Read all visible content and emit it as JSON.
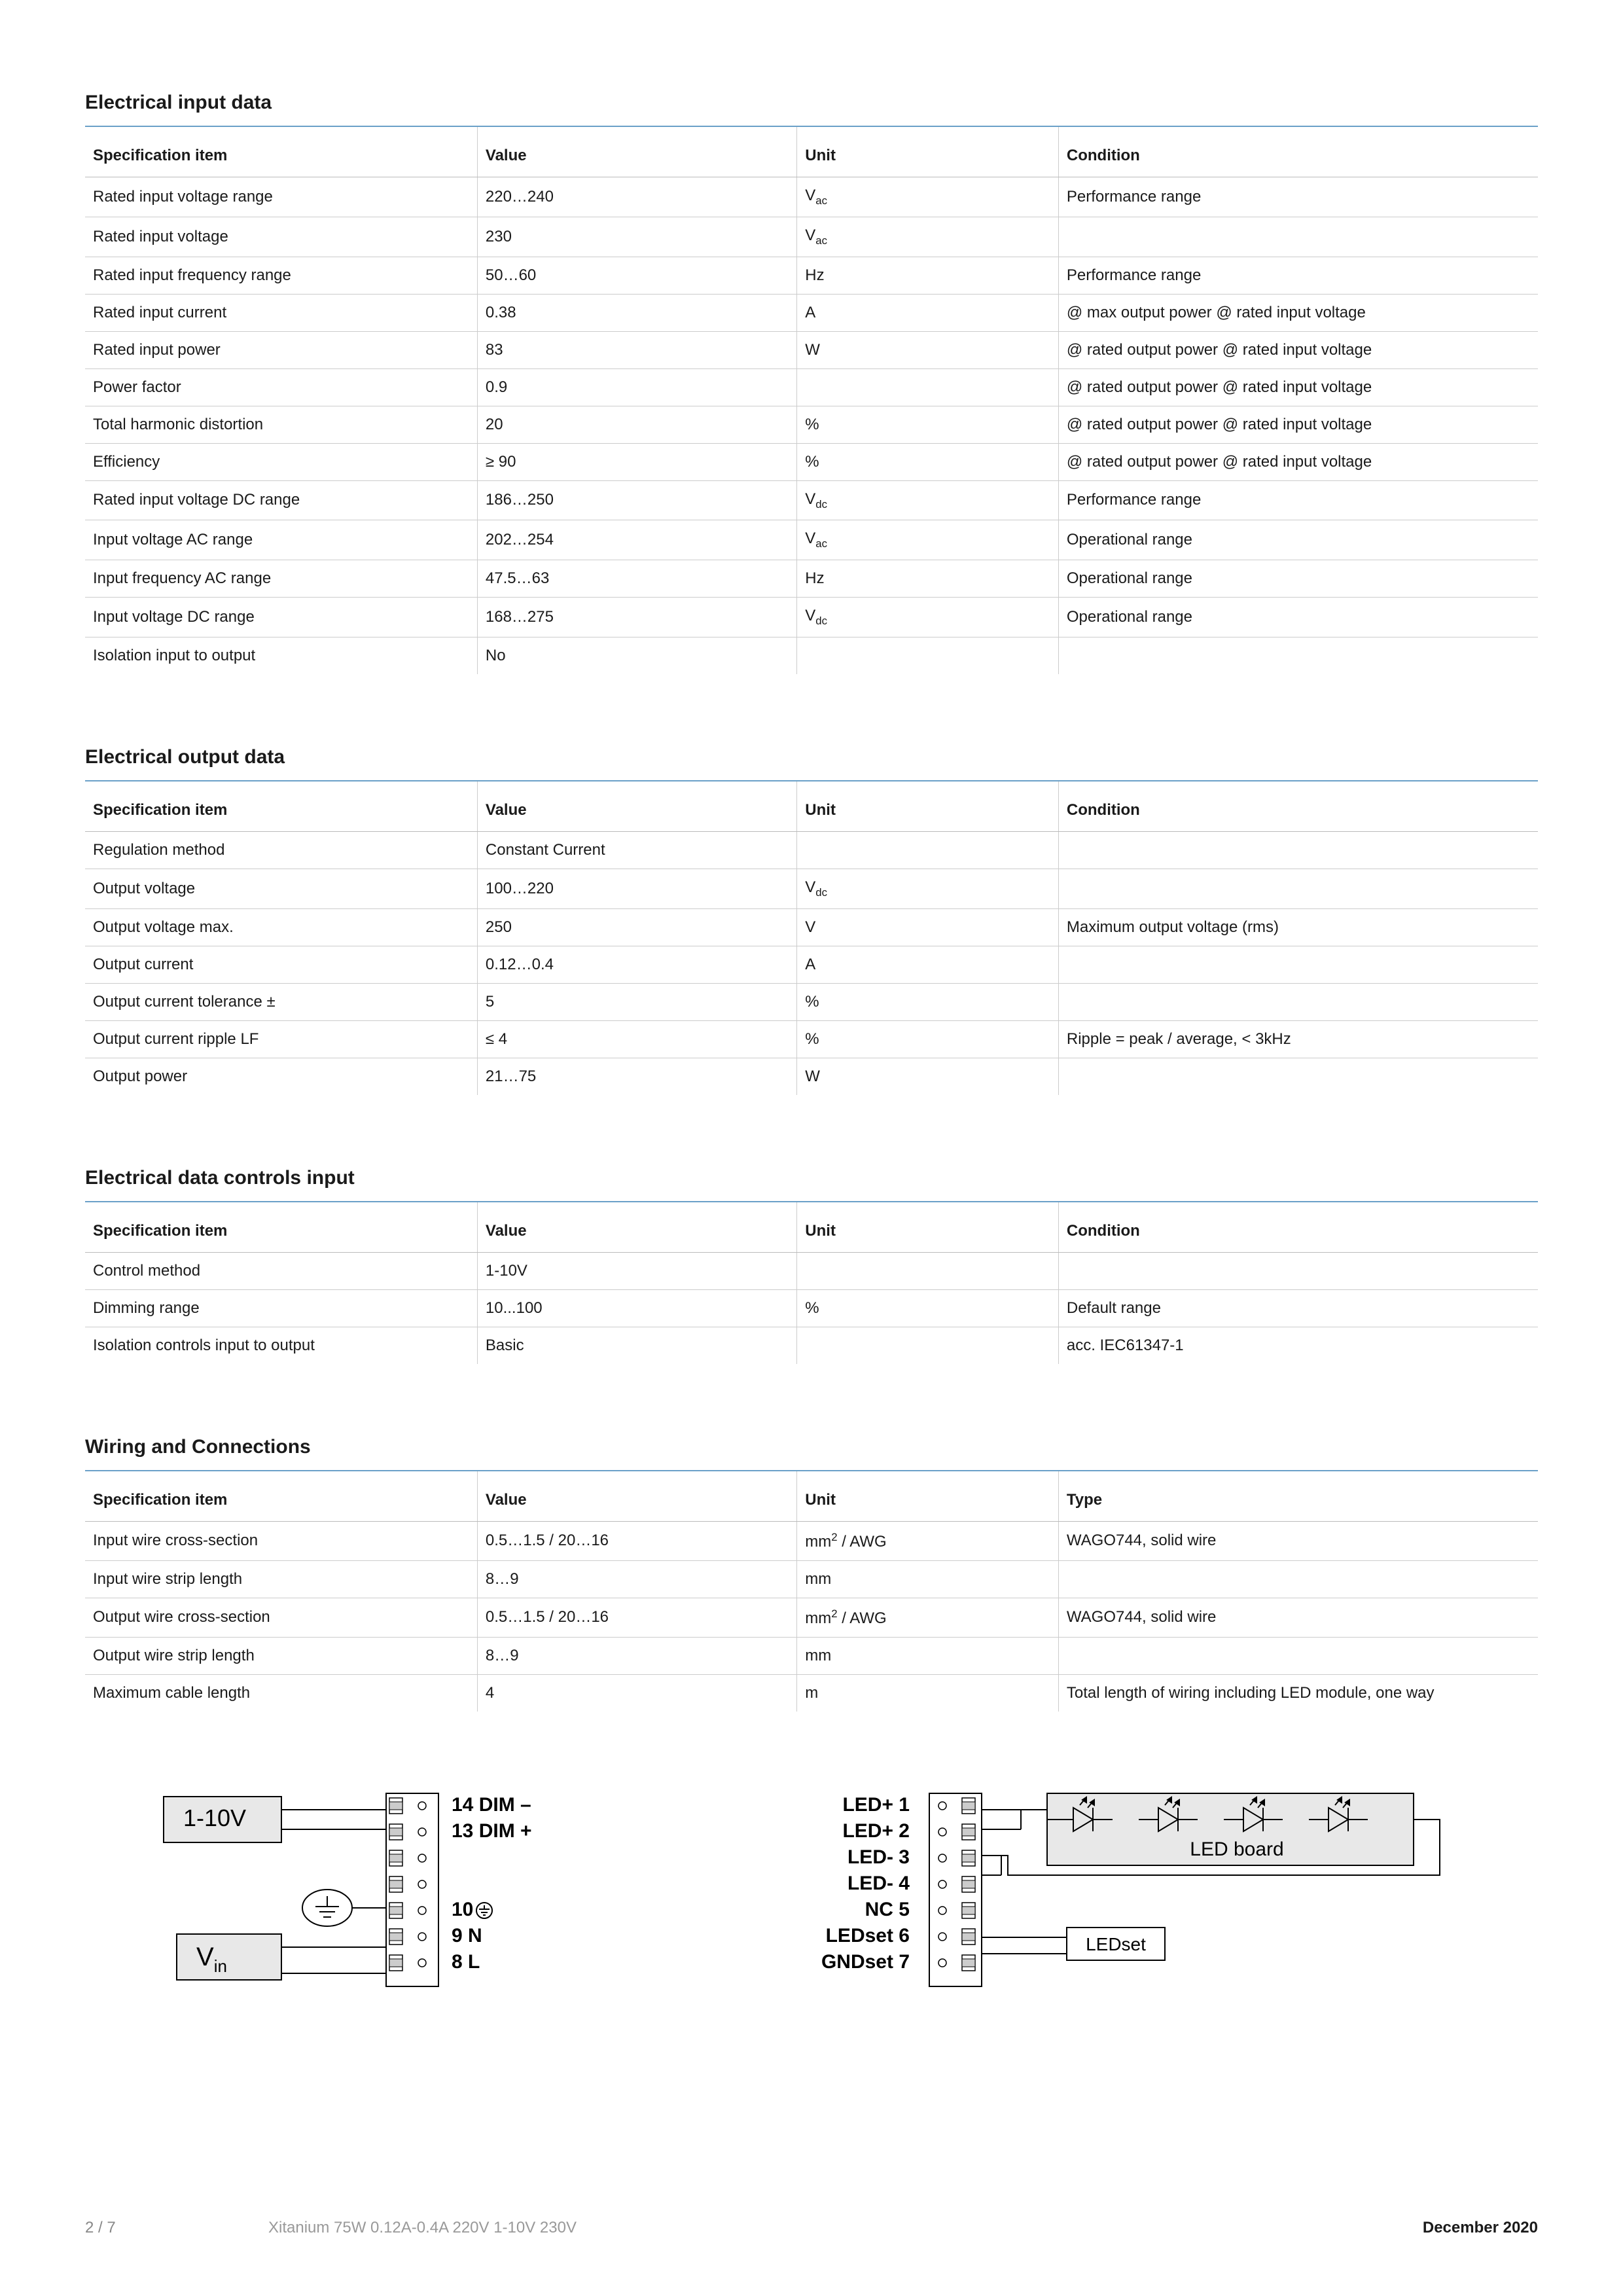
{
  "page": {
    "number": "2 / 7",
    "product": "Xitanium 75W 0.12A-0.4A 220V 1-10V 230V",
    "date": "December 2020"
  },
  "sections": [
    {
      "title": "Electrical input data",
      "headers": [
        "Specification item",
        "Value",
        "Unit",
        "Condition"
      ],
      "rows": [
        [
          "Rated input voltage range",
          "220…240",
          "V<sub>ac</sub>",
          "Performance range"
        ],
        [
          "Rated input voltage",
          "230",
          "V<sub>ac</sub>",
          ""
        ],
        [
          "Rated input frequency range",
          "50…60",
          "Hz",
          "Performance range"
        ],
        [
          "Rated input current",
          "0.38",
          "A",
          "@ max output power @ rated input voltage"
        ],
        [
          "Rated input power",
          "83",
          "W",
          "@ rated output power @ rated input voltage"
        ],
        [
          "Power factor",
          "0.9",
          "",
          "@ rated output power @ rated input voltage"
        ],
        [
          "Total harmonic distortion",
          "20",
          "%",
          "@ rated output power @ rated input voltage"
        ],
        [
          "Efficiency",
          "≥ 90",
          "%",
          "@ rated output power @ rated input voltage"
        ],
        [
          "Rated input voltage DC range",
          "186…250",
          "V<sub>dc</sub>",
          "Performance range"
        ],
        [
          "Input voltage AC range",
          "202…254",
          "V<sub>ac</sub>",
          "Operational range"
        ],
        [
          "Input frequency AC range",
          "47.5…63",
          "Hz",
          "Operational range"
        ],
        [
          "Input voltage DC range",
          "168…275",
          "V<sub>dc</sub>",
          "Operational range"
        ],
        [
          "Isolation input to output",
          "No",
          "",
          ""
        ]
      ]
    },
    {
      "title": "Electrical output data",
      "headers": [
        "Specification item",
        "Value",
        "Unit",
        "Condition"
      ],
      "rows": [
        [
          "Regulation method",
          "Constant Current",
          "",
          ""
        ],
        [
          "Output voltage",
          "100…220",
          "V<sub>dc</sub>",
          ""
        ],
        [
          "Output voltage max.",
          "250",
          "V",
          "Maximum output voltage (rms)"
        ],
        [
          "Output current",
          "0.12…0.4",
          "A",
          ""
        ],
        [
          "Output current tolerance ±",
          "5",
          "%",
          ""
        ],
        [
          "Output current ripple LF",
          "≤ 4",
          "%",
          "Ripple = peak / average, < 3kHz"
        ],
        [
          "Output power",
          "21…75",
          "W",
          ""
        ]
      ]
    },
    {
      "title": "Electrical data controls input",
      "headers": [
        "Specification item",
        "Value",
        "Unit",
        "Condition"
      ],
      "rows": [
        [
          "Control method",
          "1-10V",
          "",
          ""
        ],
        [
          "Dimming range",
          "10...100",
          "%",
          "Default range"
        ],
        [
          "Isolation controls input to output",
          "Basic",
          "",
          "acc. IEC61347-1"
        ]
      ]
    },
    {
      "title": "Wiring and Connections",
      "headers": [
        "Specification item",
        "Value",
        "Unit",
        "Type"
      ],
      "rows": [
        [
          "Input wire cross-section",
          "0.5…1.5 / 20…16",
          "mm<sup>2</sup> / AWG",
          "WAGO744, solid wire"
        ],
        [
          "Input wire strip length",
          "8…9",
          "mm",
          ""
        ],
        [
          "Output wire cross-section",
          "0.5…1.5 / 20…16",
          "mm<sup>2</sup> / AWG",
          "WAGO744, solid wire"
        ],
        [
          "Output wire strip length",
          "8…9",
          "mm",
          ""
        ],
        [
          "Maximum cable length",
          "4",
          "m",
          "Total length of wiring including LED module, one way"
        ]
      ]
    }
  ],
  "diagram": {
    "left_labels": {
      "control": "1-10V",
      "vin": "V",
      "vin_sub": "in"
    },
    "left_pins": [
      {
        "num": "14",
        "label": "DIM –"
      },
      {
        "num": "13",
        "label": "DIM +"
      },
      {
        "num": "",
        "label": ""
      },
      {
        "num": "",
        "label": ""
      },
      {
        "num": "10",
        "label": "⏚"
      },
      {
        "num": "9",
        "label": "N"
      },
      {
        "num": "8",
        "label": "L"
      }
    ],
    "right_pins": [
      {
        "label": "LED+",
        "num": "1"
      },
      {
        "label": "LED+",
        "num": "2"
      },
      {
        "label": "LED-",
        "num": "3"
      },
      {
        "label": "LED-",
        "num": "4"
      },
      {
        "label": "NC",
        "num": "5"
      },
      {
        "label": "LEDset",
        "num": "6"
      },
      {
        "label": "GNDset",
        "num": "7"
      }
    ],
    "led_board": "LED board",
    "ledset": "LEDset",
    "colors": {
      "box_fill": "#e8e8e8",
      "box_stroke": "#000000",
      "wire": "#000000",
      "text": "#000000"
    }
  }
}
